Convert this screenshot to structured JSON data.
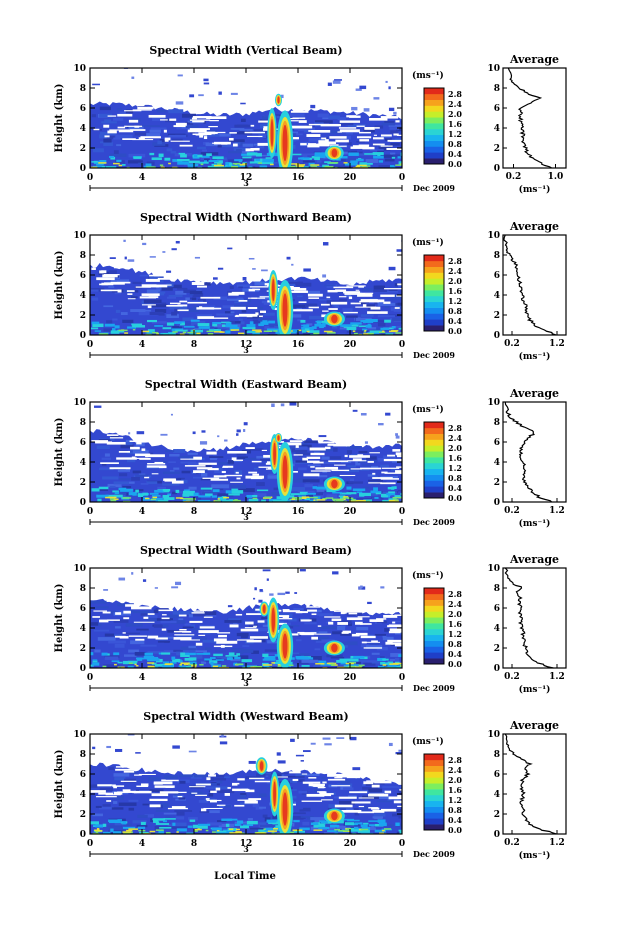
{
  "figure": {
    "xlabel": "Local Time",
    "ylabel": "Height (km)",
    "date_label": "Dec 2009",
    "day_label": "3",
    "colorbar_unit": "(ms⁻¹)",
    "avg_title": "Average",
    "avg_unit": "(ms⁻¹)",
    "colorbar_ticks": [
      "0.0",
      "0.4",
      "0.8",
      "1.2",
      "1.6",
      "2.0",
      "2.4",
      "2.8"
    ],
    "colorbar_colors": [
      "#2a1f6e",
      "#1f3fc8",
      "#1a62e6",
      "#148ef0",
      "#18b4ef",
      "#2ad4d4",
      "#3fe6a0",
      "#7cee5e",
      "#c6ee2a",
      "#f2d81e",
      "#f6a21c",
      "#f36a1c",
      "#e22a1a"
    ],
    "plot_colors": {
      "background": "#3348d0",
      "band_low": "#1aa4f0",
      "green": "#76e070",
      "red": "#e63a1e",
      "orange": "#f5a020",
      "yellow": "#e6e23a",
      "cyan": "#27d0de"
    }
  },
  "chart_data": [
    {
      "type": "heatmap",
      "title": "Spectral Width (Vertical Beam)",
      "xlim": [
        0,
        24
      ],
      "ylim": [
        0,
        10
      ],
      "x_ticks": [
        "0",
        "4",
        "8",
        "12",
        "16",
        "20",
        "0"
      ],
      "y_ticks": [
        "0",
        "2",
        "4",
        "6",
        "8",
        "10"
      ],
      "avg_x_ticks": [
        "0.2",
        "1.0"
      ],
      "avg_xlim": [
        0.0,
        1.2
      ],
      "avg_profile": [
        [
          0.95,
          0
        ],
        [
          0.7,
          0.5
        ],
        [
          0.55,
          1
        ],
        [
          0.45,
          1.5
        ],
        [
          0.42,
          2
        ],
        [
          0.4,
          2.5
        ],
        [
          0.38,
          3
        ],
        [
          0.37,
          3.5
        ],
        [
          0.36,
          4
        ],
        [
          0.35,
          4.5
        ],
        [
          0.34,
          5
        ],
        [
          0.33,
          5.5
        ],
        [
          0.33,
          6
        ],
        [
          0.5,
          6.5
        ],
        [
          0.7,
          7
        ],
        [
          0.45,
          7.5
        ],
        [
          0.3,
          8
        ],
        [
          0.2,
          8.5
        ],
        [
          0.15,
          9
        ],
        [
          0.1,
          10
        ]
      ],
      "top_profile": [
        [
          0,
          6.4
        ],
        [
          2,
          6.4
        ],
        [
          4,
          6.2
        ],
        [
          6,
          5.9
        ],
        [
          8,
          5.5
        ],
        [
          10,
          5.3
        ],
        [
          12,
          5.4
        ],
        [
          14,
          5.9
        ],
        [
          16,
          5.8
        ],
        [
          18,
          5.7
        ],
        [
          20,
          5.5
        ],
        [
          22,
          5.3
        ],
        [
          24,
          5.0
        ]
      ],
      "hotspots": [
        [
          15,
          2.5,
          0.35,
          2.6
        ],
        [
          14,
          3.5,
          0.2,
          2.0
        ],
        [
          18.8,
          1.5,
          0.4,
          0.6
        ],
        [
          14.5,
          6.8,
          0.15,
          0.5
        ]
      ]
    },
    {
      "type": "heatmap",
      "title": "Spectral Width (Northward Beam)",
      "xlim": [
        0,
        24
      ],
      "ylim": [
        0,
        10
      ],
      "x_ticks": [
        "0",
        "4",
        "8",
        "12",
        "16",
        "20",
        "0"
      ],
      "y_ticks": [
        "0",
        "2",
        "4",
        "6",
        "8",
        "10"
      ],
      "avg_x_ticks": [
        "0.2",
        "1.2"
      ],
      "avg_xlim": [
        0.0,
        1.4
      ],
      "avg_profile": [
        [
          1.2,
          0
        ],
        [
          0.9,
          0.5
        ],
        [
          0.7,
          1
        ],
        [
          0.6,
          1.5
        ],
        [
          0.55,
          2
        ],
        [
          0.5,
          2.5
        ],
        [
          0.5,
          3
        ],
        [
          0.45,
          3.5
        ],
        [
          0.42,
          4
        ],
        [
          0.4,
          4.5
        ],
        [
          0.38,
          5
        ],
        [
          0.35,
          5.5
        ],
        [
          0.32,
          6
        ],
        [
          0.3,
          6.5
        ],
        [
          0.28,
          7
        ],
        [
          0.22,
          7.5
        ],
        [
          0.15,
          8
        ],
        [
          0.1,
          8.5
        ],
        [
          0.05,
          9
        ],
        [
          0.05,
          10
        ]
      ],
      "top_profile": [
        [
          0,
          7.0
        ],
        [
          2,
          6.9
        ],
        [
          4,
          6.3
        ],
        [
          6,
          5.6
        ],
        [
          8,
          5.4
        ],
        [
          10,
          5.2
        ],
        [
          12,
          5.3
        ],
        [
          14,
          5.5
        ],
        [
          16,
          5.7
        ],
        [
          18,
          5.4
        ],
        [
          20,
          5.0
        ],
        [
          22,
          5.4
        ],
        [
          24,
          5.6
        ]
      ],
      "hotspots": [
        [
          15,
          2.5,
          0.35,
          2.4
        ],
        [
          14.1,
          4.5,
          0.2,
          1.6
        ],
        [
          18.8,
          1.6,
          0.45,
          0.6
        ]
      ]
    },
    {
      "type": "heatmap",
      "title": "Spectral Width (Eastward Beam)",
      "xlim": [
        0,
        24
      ],
      "ylim": [
        0,
        10
      ],
      "x_ticks": [
        "0",
        "4",
        "8",
        "12",
        "16",
        "20",
        "0"
      ],
      "y_ticks": [
        "0",
        "2",
        "4",
        "6",
        "8",
        "10"
      ],
      "avg_x_ticks": [
        "0.2",
        "1.2"
      ],
      "avg_xlim": [
        0.0,
        1.4
      ],
      "avg_profile": [
        [
          1.1,
          0
        ],
        [
          0.8,
          0.5
        ],
        [
          0.65,
          1
        ],
        [
          0.55,
          1.5
        ],
        [
          0.5,
          2
        ],
        [
          0.45,
          2.5
        ],
        [
          0.45,
          3
        ],
        [
          0.5,
          3.5
        ],
        [
          0.45,
          4
        ],
        [
          0.4,
          4.5
        ],
        [
          0.38,
          5
        ],
        [
          0.4,
          5.5
        ],
        [
          0.5,
          6
        ],
        [
          0.6,
          6.5
        ],
        [
          0.7,
          7
        ],
        [
          0.45,
          7.5
        ],
        [
          0.3,
          8
        ],
        [
          0.15,
          8.5
        ],
        [
          0.1,
          9
        ],
        [
          0.05,
          10
        ]
      ],
      "top_profile": [
        [
          0,
          7.2
        ],
        [
          2,
          6.8
        ],
        [
          4,
          6.0
        ],
        [
          6,
          5.4
        ],
        [
          8,
          5.2
        ],
        [
          10,
          5.3
        ],
        [
          12,
          5.8
        ],
        [
          14,
          6.1
        ],
        [
          16,
          6.3
        ],
        [
          18,
          6.0
        ],
        [
          20,
          5.6
        ],
        [
          22,
          5.4
        ],
        [
          24,
          5.7
        ]
      ],
      "hotspots": [
        [
          15,
          3.0,
          0.35,
          2.4
        ],
        [
          14.2,
          4.8,
          0.2,
          1.6
        ],
        [
          18.8,
          1.8,
          0.45,
          0.6
        ],
        [
          14.5,
          6.4,
          0.15,
          0.4
        ]
      ]
    },
    {
      "type": "heatmap",
      "title": "Spectral Width (Southward Beam)",
      "xlim": [
        0,
        24
      ],
      "ylim": [
        0,
        10
      ],
      "x_ticks": [
        "0",
        "4",
        "8",
        "12",
        "16",
        "20",
        "0"
      ],
      "y_ticks": [
        "0",
        "2",
        "4",
        "6",
        "8",
        "10"
      ],
      "avg_x_ticks": [
        "0.2",
        "1.2"
      ],
      "avg_xlim": [
        0.0,
        1.4
      ],
      "avg_profile": [
        [
          1.1,
          0
        ],
        [
          0.8,
          0.5
        ],
        [
          0.6,
          1
        ],
        [
          0.55,
          1.5
        ],
        [
          0.5,
          2
        ],
        [
          0.48,
          2.5
        ],
        [
          0.45,
          3
        ],
        [
          0.45,
          3.5
        ],
        [
          0.42,
          4
        ],
        [
          0.4,
          4.5
        ],
        [
          0.4,
          5
        ],
        [
          0.38,
          5.5
        ],
        [
          0.4,
          6
        ],
        [
          0.35,
          6.5
        ],
        [
          0.4,
          7
        ],
        [
          0.3,
          7.5
        ],
        [
          0.45,
          8
        ],
        [
          0.2,
          8.5
        ],
        [
          0.1,
          9
        ],
        [
          0.05,
          10
        ]
      ],
      "top_profile": [
        [
          0,
          7.0
        ],
        [
          2,
          6.6
        ],
        [
          4,
          6.2
        ],
        [
          6,
          6.0
        ],
        [
          8,
          5.8
        ],
        [
          10,
          5.6
        ],
        [
          12,
          6.0
        ],
        [
          14,
          6.3
        ],
        [
          16,
          6.5
        ],
        [
          18,
          6.0
        ],
        [
          20,
          5.5
        ],
        [
          22,
          5.3
        ],
        [
          24,
          5.4
        ]
      ],
      "hotspots": [
        [
          15,
          2.2,
          0.35,
          1.8
        ],
        [
          14.1,
          4.8,
          0.25,
          1.8
        ],
        [
          13.4,
          5.9,
          0.2,
          0.6
        ],
        [
          18.8,
          2.0,
          0.45,
          0.6
        ]
      ]
    },
    {
      "type": "heatmap",
      "title": "Spectral Width (Westward Beam)",
      "xlim": [
        0,
        24
      ],
      "ylim": [
        0,
        10
      ],
      "x_ticks": [
        "0",
        "4",
        "8",
        "12",
        "16",
        "20",
        "0"
      ],
      "y_ticks": [
        "0",
        "2",
        "4",
        "6",
        "8",
        "10"
      ],
      "avg_x_ticks": [
        "0.2",
        "1.2"
      ],
      "avg_xlim": [
        0.0,
        1.4
      ],
      "avg_profile": [
        [
          1.2,
          0
        ],
        [
          0.8,
          0.5
        ],
        [
          0.6,
          1
        ],
        [
          0.5,
          1.5
        ],
        [
          0.45,
          2
        ],
        [
          0.45,
          2.5
        ],
        [
          0.4,
          3
        ],
        [
          0.42,
          3.5
        ],
        [
          0.45,
          4
        ],
        [
          0.42,
          4.5
        ],
        [
          0.4,
          5
        ],
        [
          0.45,
          5.5
        ],
        [
          0.55,
          6
        ],
        [
          0.5,
          6.5
        ],
        [
          0.6,
          7
        ],
        [
          0.4,
          7.5
        ],
        [
          0.25,
          8
        ],
        [
          0.15,
          8.5
        ],
        [
          0.1,
          9
        ],
        [
          0.05,
          10
        ]
      ],
      "top_profile": [
        [
          0,
          7.0
        ],
        [
          2,
          6.8
        ],
        [
          4,
          6.4
        ],
        [
          6,
          6.1
        ],
        [
          8,
          6.0
        ],
        [
          10,
          6.0
        ],
        [
          12,
          6.2
        ],
        [
          14,
          6.4
        ],
        [
          16,
          6.3
        ],
        [
          18,
          6.1
        ],
        [
          20,
          5.8
        ],
        [
          22,
          5.3
        ],
        [
          24,
          5.0
        ]
      ],
      "hotspots": [
        [
          15,
          2.5,
          0.35,
          2.4
        ],
        [
          14.2,
          4.0,
          0.2,
          1.8
        ],
        [
          13.2,
          6.8,
          0.25,
          0.7
        ],
        [
          18.8,
          1.8,
          0.45,
          0.6
        ]
      ]
    }
  ]
}
